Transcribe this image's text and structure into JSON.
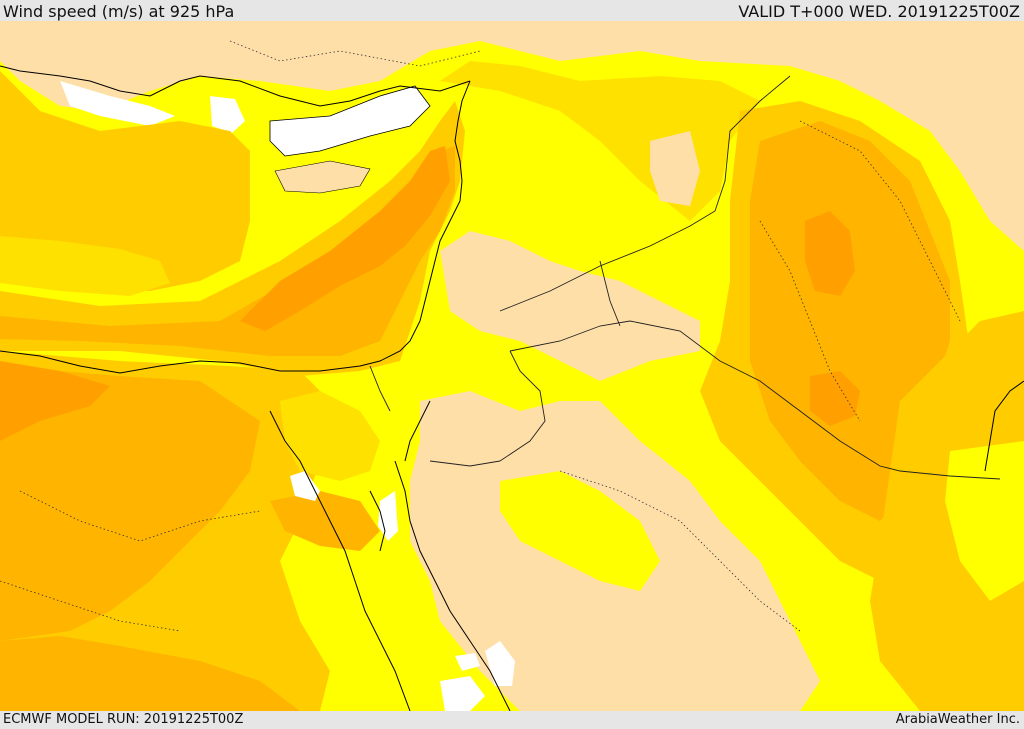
{
  "header": {
    "title": "Wind speed (m/s) at 925 hPa",
    "valid_time": "VALID T+000 WED. 20191225T00Z"
  },
  "footer": {
    "model_run": "ECMWF MODEL RUN: 20191225T00Z",
    "credit": "ArabiaWeather Inc."
  },
  "colors": {
    "calm_tan": "#ffdfa8",
    "light_yellow": "#ffff00",
    "yellow": "#ffe100",
    "gold": "#ffcc00",
    "light_orange": "#ffb400",
    "orange": "#ffa000",
    "land_mask_white": "#ffffff",
    "coastline": "#000000"
  }
}
